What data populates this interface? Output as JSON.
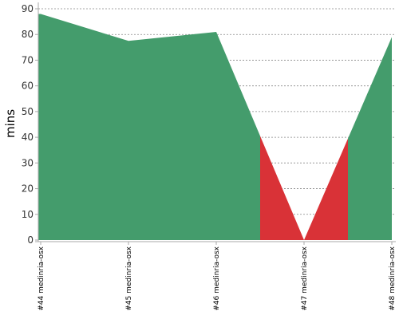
{
  "chart_data": {
    "type": "area",
    "title": "",
    "xlabel": "",
    "ylabel": "mins",
    "ylim": [
      0,
      90
    ],
    "yticks": [
      0,
      10,
      20,
      30,
      40,
      50,
      60,
      70,
      80,
      90
    ],
    "categories": [
      "#44 medinria-osx",
      "#45 medinria-osx",
      "#46 medinria-osx",
      "#47 medinria-osx",
      "#48 medinria-osx"
    ],
    "values": [
      88,
      77.5,
      81,
      0,
      79
    ],
    "status": [
      "success",
      "success",
      "success",
      "failure",
      "success"
    ],
    "grid": true,
    "legend": "none"
  },
  "colors": {
    "success": "#449c6c",
    "failure": "#d93237",
    "grid": "#888888",
    "axis": "#aaaaaa"
  }
}
